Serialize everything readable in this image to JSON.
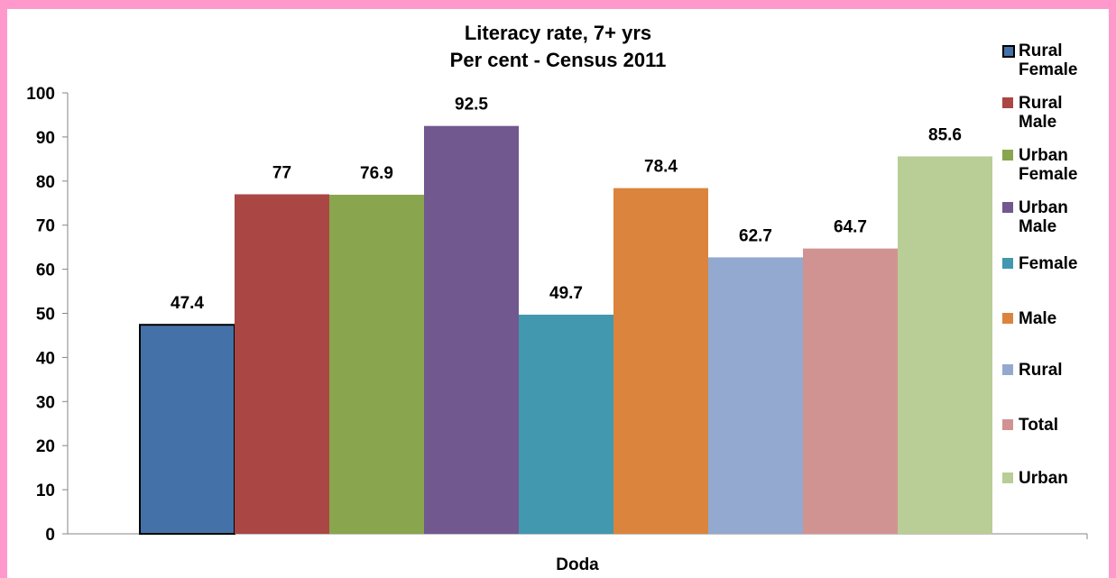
{
  "chart_data": {
    "type": "bar",
    "title": "Literacy rate, 7+ yrs",
    "subtitle": "Per cent - Census 2011",
    "xlabel": "Doda",
    "ylabel": "",
    "ylim": [
      0,
      100
    ],
    "yticks": [
      0,
      10,
      20,
      30,
      40,
      50,
      60,
      70,
      80,
      90,
      100
    ],
    "categories": [
      "Doda"
    ],
    "grid": false,
    "legend_position": "right",
    "series": [
      {
        "name": "Rural Female",
        "values": [
          47.4
        ],
        "color": "#4472a8",
        "label": "47.4"
      },
      {
        "name": "Rural Male",
        "values": [
          77
        ],
        "color": "#aa4644",
        "label": "77"
      },
      {
        "name": "Urban Female",
        "values": [
          76.9
        ],
        "color": "#89a54e",
        "label": "76.9"
      },
      {
        "name": "Urban Male",
        "values": [
          92.5
        ],
        "color": "#71588f",
        "label": "92.5"
      },
      {
        "name": "Female",
        "values": [
          49.7
        ],
        "color": "#4198af",
        "label": "49.7"
      },
      {
        "name": "Male",
        "values": [
          78.4
        ],
        "color": "#db843d",
        "label": "78.4"
      },
      {
        "name": "Rural",
        "values": [
          62.7
        ],
        "color": "#93a9cf",
        "label": "62.7"
      },
      {
        "name": "Total",
        "values": [
          64.7
        ],
        "color": "#d19392",
        "label": "64.7"
      },
      {
        "name": "Urban",
        "values": [
          85.6
        ],
        "color": "#b9cd96",
        "label": "85.6"
      }
    ]
  }
}
